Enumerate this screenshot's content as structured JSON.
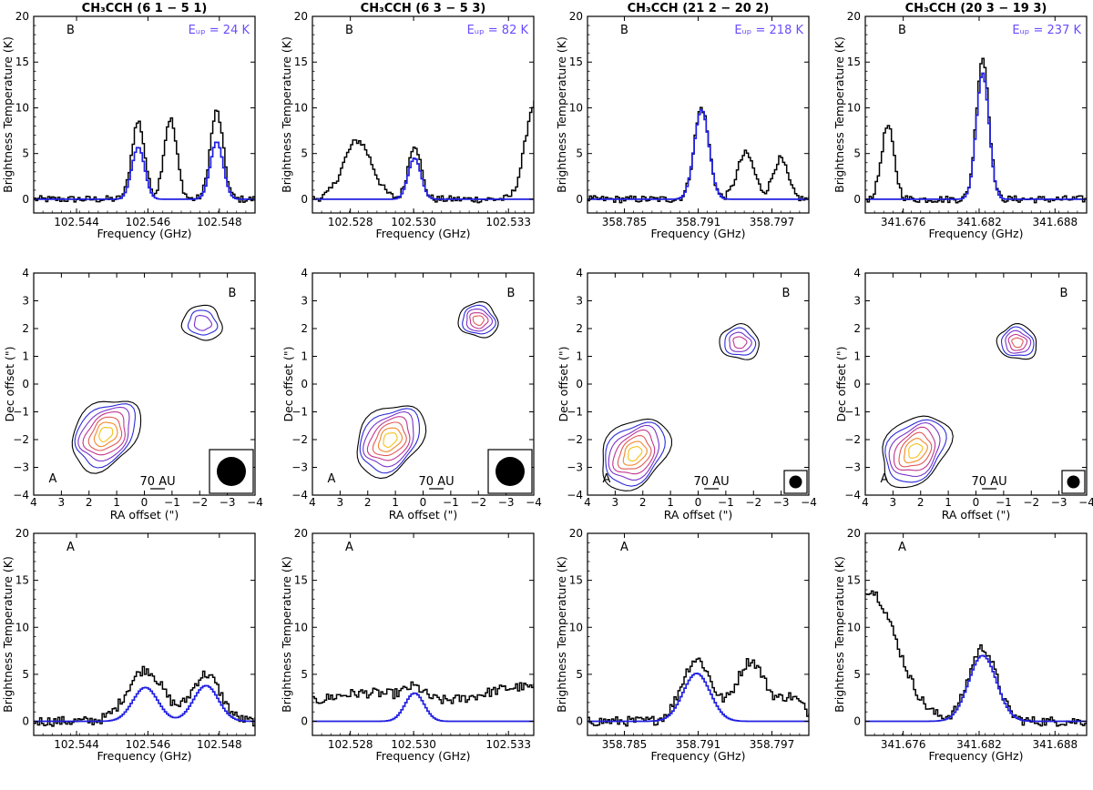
{
  "colors": {
    "observed": "#000000",
    "model": "#1f1fe0",
    "eup": "#6a4cff",
    "contours": [
      "#000000",
      "#2b2bd6",
      "#7a33c9",
      "#c0368f",
      "#e05a5a",
      "#f08a2e",
      "#f2c21a"
    ]
  },
  "chart_data": [
    {
      "type": "line",
      "panel": "spectrum-B-1",
      "source": "B",
      "title": "CH₃CCH (6 1 − 5 1)",
      "eup": "Eᵤₚ = 24 K",
      "xlabel": "Frequency (GHz)",
      "ylabel": "Brightness Temperature (K)",
      "xlim": [
        102.5428,
        102.549
      ],
      "ylim": [
        -1.5,
        20
      ],
      "xticks": [
        102.544,
        102.546,
        102.548
      ],
      "xtick_labels": [
        "102.544",
        "102.546",
        "102.548"
      ],
      "yticks": [
        0,
        5,
        10,
        15,
        20
      ],
      "series": [
        {
          "name": "observed",
          "peaks": [
            [
              102.5457,
              8.5,
              0.00018
            ],
            [
              102.5466,
              8.8,
              0.00018
            ],
            [
              102.5479,
              9.6,
              0.00018
            ]
          ]
        },
        {
          "name": "model",
          "peaks": [
            [
              102.5457,
              5.7,
              0.00018
            ],
            [
              102.5479,
              6.3,
              0.00018
            ]
          ]
        }
      ]
    },
    {
      "type": "line",
      "panel": "spectrum-B-2",
      "source": "B",
      "title": "CH₃CCH (6 3 − 5 3)",
      "eup": "Eᵤₚ = 82 K",
      "xlabel": "Frequency (GHz)",
      "ylabel": "Brightness Temperature (K)",
      "xlim": [
        102.5268,
        102.5338
      ],
      "ylim": [
        -1.5,
        20
      ],
      "xticks": [
        102.528,
        102.53,
        102.533
      ],
      "xtick_labels": [
        "102.528",
        "102.530",
        "102.533"
      ],
      "yticks": [
        0,
        5,
        10,
        15,
        20
      ],
      "series": [
        {
          "name": "observed",
          "peaks": [
            [
              102.5282,
              6.4,
              0.00045
            ],
            [
              102.53,
              6.0,
              0.0002
            ],
            [
              102.5338,
              10.5,
              0.0003
            ]
          ]
        },
        {
          "name": "model",
          "peaks": [
            [
              102.53,
              4.5,
              0.0002
            ]
          ]
        }
      ]
    },
    {
      "type": "line",
      "panel": "spectrum-B-3",
      "source": "B",
      "title": "CH₃CCH (21 2 − 20 2)",
      "eup": "Eᵤₚ = 218 K",
      "xlabel": "Frequency (GHz)",
      "ylabel": "Brightness Temperature (K)",
      "xlim": [
        358.782,
        358.8
      ],
      "ylim": [
        -1.5,
        20
      ],
      "xticks": [
        358.785,
        358.791,
        358.797
      ],
      "xtick_labels": [
        "358.785",
        "358.791",
        "358.797"
      ],
      "yticks": [
        0,
        5,
        10,
        15,
        20
      ],
      "series": [
        {
          "name": "observed",
          "peaks": [
            [
              358.7912,
              10.0,
              0.0006
            ],
            [
              358.7948,
              5.0,
              0.0007
            ],
            [
              358.7976,
              4.4,
              0.0006
            ]
          ]
        },
        {
          "name": "model",
          "peaks": [
            [
              358.7912,
              9.8,
              0.0006
            ]
          ]
        }
      ]
    },
    {
      "type": "line",
      "panel": "spectrum-B-4",
      "source": "B",
      "title": "CH₃CCH (20 3 − 19 3)",
      "eup": "Eᵤₚ = 237 K",
      "xlabel": "Frequency (GHz)",
      "ylabel": "Brightness Temperature (K)",
      "xlim": [
        341.673,
        341.6905
      ],
      "ylim": [
        -1.5,
        20
      ],
      "xticks": [
        341.676,
        341.682,
        341.688
      ],
      "xtick_labels": [
        "341.676",
        "341.682",
        "341.688"
      ],
      "yticks": [
        0,
        5,
        10,
        15,
        20
      ],
      "series": [
        {
          "name": "observed",
          "peaks": [
            [
              341.6747,
              8.0,
              0.0005
            ],
            [
              341.6822,
              15.5,
              0.0005
            ]
          ]
        },
        {
          "name": "model",
          "peaks": [
            [
              341.6822,
              13.8,
              0.0005
            ]
          ]
        }
      ]
    },
    {
      "type": "contour",
      "panel": "map-1",
      "xlabel": "RA offset (\")",
      "ylabel": "Dec offset (\")",
      "xlim": [
        4,
        -4
      ],
      "ylim": [
        -4,
        4
      ],
      "ticks": [
        4,
        3,
        2,
        1,
        0,
        -1,
        -2,
        -3,
        -4
      ],
      "tick_labels": [
        "4",
        "3",
        "2",
        "1",
        "0",
        "−1",
        "−2",
        "−3",
        "−4"
      ],
      "source_b_label": "B",
      "source_a_label": "A",
      "scale_label": "70 AU",
      "beam_size": "large",
      "sources": [
        {
          "name": "A",
          "ra": 1.4,
          "dec": -1.8,
          "levels": 7
        },
        {
          "name": "B",
          "ra": -2.1,
          "dec": 2.2,
          "levels": 3
        }
      ]
    },
    {
      "type": "contour",
      "panel": "map-2",
      "xlabel": "RA offset (\")",
      "ylabel": "Dec offset (\")",
      "xlim": [
        4,
        -4
      ],
      "ylim": [
        -4,
        4
      ],
      "ticks": [
        4,
        3,
        2,
        1,
        0,
        -1,
        -2,
        -3,
        -4
      ],
      "tick_labels": [
        "4",
        "3",
        "2",
        "1",
        "0",
        "−1",
        "−2",
        "−3",
        "−4"
      ],
      "source_b_label": "B",
      "source_a_label": "A",
      "scale_label": "70 AU",
      "beam_size": "large",
      "sources": [
        {
          "name": "A",
          "ra": 1.2,
          "dec": -2.0,
          "levels": 7
        },
        {
          "name": "B",
          "ra": -2.0,
          "dec": 2.3,
          "levels": 5
        }
      ]
    },
    {
      "type": "contour",
      "panel": "map-3",
      "xlabel": "RA offset (\")",
      "ylabel": "Dec offset (\")",
      "xlim": [
        4,
        -4
      ],
      "ylim": [
        -4,
        4
      ],
      "ticks": [
        4,
        3,
        2,
        1,
        0,
        -1,
        -2,
        -3,
        -4
      ],
      "tick_labels": [
        "4",
        "3",
        "2",
        "1",
        "0",
        "−1",
        "−2",
        "−3",
        "−4"
      ],
      "source_b_label": "B",
      "source_a_label": "A",
      "scale_label": "70 AU",
      "beam_size": "small",
      "sources": [
        {
          "name": "A",
          "ra": 2.3,
          "dec": -2.5,
          "levels": 7
        },
        {
          "name": "B",
          "ra": -1.5,
          "dec": 1.5,
          "levels": 4
        }
      ]
    },
    {
      "type": "contour",
      "panel": "map-4",
      "xlabel": "RA offset (\")",
      "ylabel": "Dec offset (\")",
      "xlim": [
        4,
        -4
      ],
      "ylim": [
        -4,
        4
      ],
      "ticks": [
        4,
        3,
        2,
        1,
        0,
        -1,
        -2,
        -3,
        -4
      ],
      "tick_labels": [
        "4",
        "3",
        "2",
        "1",
        "0",
        "−1",
        "−2",
        "−3",
        "−4"
      ],
      "source_b_label": "B",
      "source_a_label": "A",
      "scale_label": "70 AU",
      "beam_size": "small",
      "sources": [
        {
          "name": "A",
          "ra": 2.2,
          "dec": -2.4,
          "levels": 7
        },
        {
          "name": "B",
          "ra": -1.5,
          "dec": 1.5,
          "levels": 5
        }
      ]
    },
    {
      "type": "line",
      "panel": "spectrum-A-1",
      "source": "A",
      "xlabel": "Frequency (GHz)",
      "ylabel": "Brightness Temperature (K)",
      "xlim": [
        102.5428,
        102.549
      ],
      "ylim": [
        -1.5,
        20
      ],
      "xticks": [
        102.544,
        102.546,
        102.548
      ],
      "xtick_labels": [
        "102.544",
        "102.546",
        "102.548"
      ],
      "yticks": [
        0,
        5,
        10,
        15,
        20
      ],
      "series": [
        {
          "name": "observed",
          "peaks": [
            [
              102.5459,
              5.5,
              0.0005
            ],
            [
              102.5476,
              5.0,
              0.0004
            ]
          ]
        },
        {
          "name": "model",
          "peaks": [
            [
              102.5459,
              3.6,
              0.00035
            ],
            [
              102.5476,
              3.8,
              0.00035
            ]
          ]
        }
      ]
    },
    {
      "type": "line",
      "panel": "spectrum-A-2",
      "source": "A",
      "xlabel": "Frequency (GHz)",
      "ylabel": "Brightness Temperature (K)",
      "xlim": [
        102.5268,
        102.5338
      ],
      "ylim": [
        -1.5,
        20
      ],
      "xticks": [
        102.528,
        102.53,
        102.533
      ],
      "xtick_labels": [
        "102.528",
        "102.530",
        "102.533"
      ],
      "yticks": [
        0,
        5,
        10,
        15,
        20
      ],
      "series": [
        {
          "name": "observed",
          "peaks": [
            [
              102.5285,
              3.0,
              0.002
            ],
            [
              102.53,
              1.2,
              0.0003
            ],
            [
              102.5335,
              3.5,
              0.0015
            ]
          ]
        },
        {
          "name": "model",
          "peaks": [
            [
              102.53,
              3.0,
              0.0003
            ]
          ]
        }
      ]
    },
    {
      "type": "line",
      "panel": "spectrum-A-3",
      "source": "A",
      "xlabel": "Frequency (GHz)",
      "ylabel": "Brightness Temperature (K)",
      "xlim": [
        358.782,
        358.8
      ],
      "ylim": [
        -1.5,
        20
      ],
      "xticks": [
        358.785,
        358.791,
        358.797
      ],
      "xtick_labels": [
        "358.785",
        "358.791",
        "358.797"
      ],
      "yticks": [
        0,
        5,
        10,
        15,
        20
      ],
      "series": [
        {
          "name": "observed",
          "peaks": [
            [
              358.7908,
              6.6,
              0.0012
            ],
            [
              358.7952,
              6.4,
              0.0012
            ],
            [
              358.7985,
              2.5,
              0.001
            ]
          ]
        },
        {
          "name": "model",
          "peaks": [
            [
              358.7908,
              5.1,
              0.0011
            ]
          ]
        }
      ]
    },
    {
      "type": "line",
      "panel": "spectrum-A-4",
      "source": "A",
      "xlabel": "Frequency (GHz)",
      "ylabel": "Brightness Temperature (K)",
      "xlim": [
        341.673,
        341.6905
      ],
      "ylim": [
        -1.5,
        20
      ],
      "xticks": [
        341.676,
        341.682,
        341.688
      ],
      "xtick_labels": [
        "341.676",
        "341.682",
        "341.688"
      ],
      "yticks": [
        0,
        5,
        10,
        15,
        20
      ],
      "series": [
        {
          "name": "observed",
          "peaks": [
            [
              341.6732,
              14,
              0.0022
            ],
            [
              341.6822,
              7.8,
              0.0011
            ]
          ]
        },
        {
          "name": "model",
          "peaks": [
            [
              341.6822,
              7.0,
              0.0011
            ]
          ]
        }
      ]
    }
  ]
}
